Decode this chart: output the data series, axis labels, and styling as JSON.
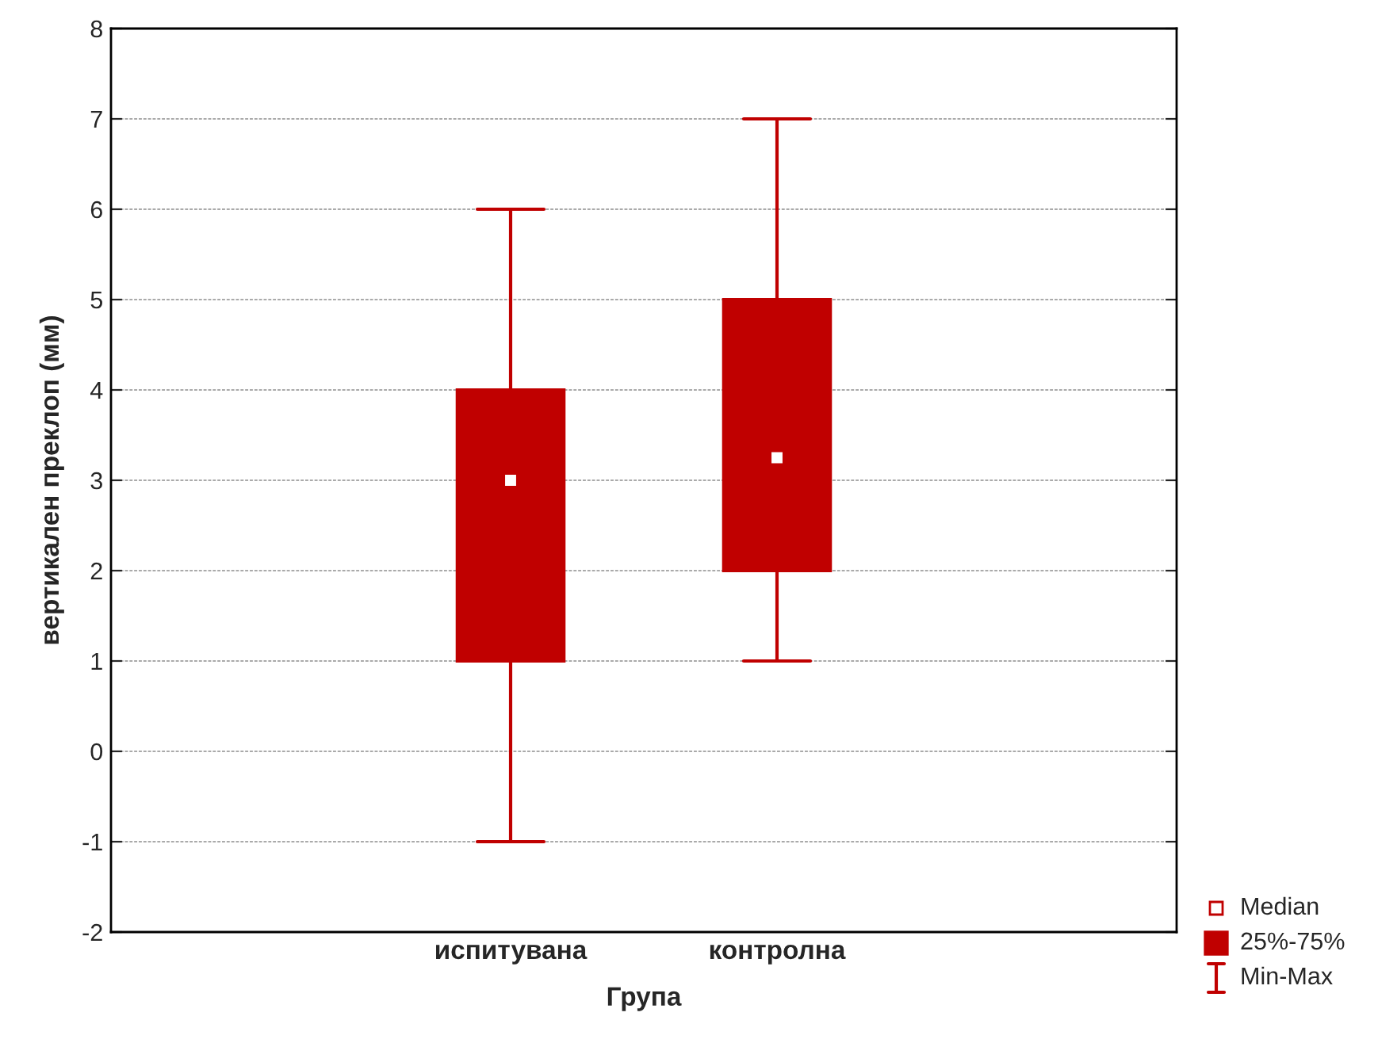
{
  "chart_data": {
    "type": "box",
    "xlabel": "Група",
    "ylabel": "вертикален преклоп (мм)",
    "categories": [
      "испитувана",
      "контролна"
    ],
    "boxes": [
      {
        "low": -1,
        "q1": 1,
        "median": 3,
        "q3": 4,
        "high": 6
      },
      {
        "low": 1,
        "q1": 2,
        "median": 3.25,
        "q3": 5,
        "high": 7
      }
    ],
    "color": "#c00000",
    "ylim": [
      -2,
      8
    ],
    "yticks": [
      -2,
      -1,
      0,
      1,
      2,
      3,
      4,
      5,
      6,
      7,
      8
    ],
    "grid": "y",
    "annotations": [
      "Median",
      "25%-75%",
      "Min-Max"
    ]
  }
}
